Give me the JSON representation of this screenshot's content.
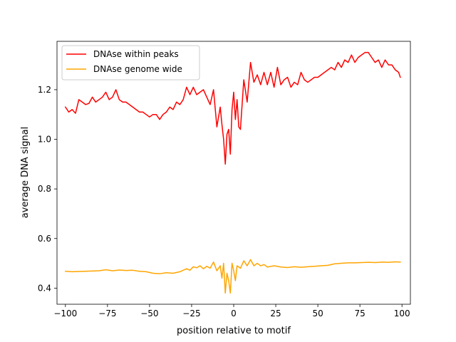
{
  "chart_data": {
    "type": "line",
    "xlabel": "position relative to motif",
    "ylabel": "average DNA signal",
    "xlim": [
      -105,
      105
    ],
    "ylim": [
      0.335,
      1.395
    ],
    "xticks": [
      -100,
      -75,
      -50,
      -25,
      0,
      25,
      50,
      75,
      100
    ],
    "xtick_labels": [
      "−100",
      "−75",
      "−50",
      "−25",
      "0",
      "25",
      "50",
      "75",
      "100"
    ],
    "yticks": [
      0.4,
      0.6,
      0.8,
      1.0,
      1.2
    ],
    "ytick_labels": [
      "0.4",
      "0.6",
      "0.8",
      "1.0",
      "1.2"
    ],
    "grid": false,
    "legend_position": "upper left",
    "series": [
      {
        "name": "DNAse within peaks",
        "color": "#ff0000",
        "x": [
          -100,
          -98,
          -96,
          -94,
          -92,
          -90,
          -88,
          -86,
          -84,
          -82,
          -80,
          -78,
          -76,
          -74,
          -72,
          -70,
          -68,
          -66,
          -64,
          -62,
          -60,
          -58,
          -56,
          -54,
          -52,
          -50,
          -48,
          -46,
          -44,
          -42,
          -40,
          -38,
          -36,
          -34,
          -32,
          -30,
          -28,
          -26,
          -24,
          -22,
          -20,
          -18,
          -16,
          -14,
          -12,
          -10,
          -8,
          -7,
          -6,
          -5,
          -4,
          -3,
          -2,
          -1,
          0,
          1,
          2,
          3,
          4,
          6,
          8,
          10,
          12,
          14,
          16,
          18,
          20,
          22,
          24,
          26,
          28,
          30,
          32,
          34,
          36,
          38,
          40,
          42,
          44,
          46,
          48,
          50,
          52,
          54,
          56,
          58,
          60,
          62,
          64,
          66,
          68,
          70,
          72,
          74,
          76,
          78,
          80,
          82,
          84,
          86,
          88,
          90,
          92,
          94,
          96,
          98,
          99
        ],
        "y": [
          1.13,
          1.11,
          1.12,
          1.105,
          1.16,
          1.15,
          1.14,
          1.145,
          1.17,
          1.15,
          1.16,
          1.17,
          1.19,
          1.16,
          1.17,
          1.2,
          1.16,
          1.15,
          1.15,
          1.14,
          1.13,
          1.12,
          1.11,
          1.11,
          1.1,
          1.09,
          1.1,
          1.1,
          1.08,
          1.1,
          1.11,
          1.13,
          1.12,
          1.15,
          1.14,
          1.16,
          1.21,
          1.18,
          1.21,
          1.18,
          1.19,
          1.2,
          1.17,
          1.14,
          1.2,
          1.05,
          1.13,
          1.06,
          1.0,
          0.9,
          1.02,
          1.04,
          0.94,
          1.12,
          1.19,
          1.08,
          1.16,
          1.05,
          1.04,
          1.24,
          1.15,
          1.31,
          1.23,
          1.26,
          1.22,
          1.27,
          1.22,
          1.27,
          1.21,
          1.29,
          1.22,
          1.24,
          1.25,
          1.21,
          1.23,
          1.22,
          1.27,
          1.24,
          1.23,
          1.24,
          1.25,
          1.25,
          1.26,
          1.27,
          1.28,
          1.29,
          1.28,
          1.31,
          1.29,
          1.32,
          1.31,
          1.34,
          1.31,
          1.33,
          1.34,
          1.35,
          1.35,
          1.33,
          1.31,
          1.32,
          1.29,
          1.32,
          1.3,
          1.3,
          1.28,
          1.27,
          1.25
        ]
      },
      {
        "name": "DNAse genome wide",
        "color": "#ffa500",
        "x": [
          -100,
          -96,
          -92,
          -88,
          -84,
          -80,
          -76,
          -72,
          -68,
          -64,
          -60,
          -56,
          -52,
          -48,
          -44,
          -40,
          -36,
          -32,
          -28,
          -26,
          -24,
          -22,
          -20,
          -18,
          -16,
          -14,
          -12,
          -10,
          -8,
          -7,
          -6,
          -5,
          -4,
          -3,
          -2,
          -1,
          0,
          1,
          2,
          4,
          6,
          8,
          10,
          12,
          14,
          16,
          18,
          20,
          24,
          28,
          32,
          36,
          40,
          44,
          48,
          52,
          56,
          60,
          64,
          68,
          72,
          76,
          80,
          84,
          88,
          92,
          96,
          99
        ],
        "y": [
          0.468,
          0.466,
          0.467,
          0.468,
          0.469,
          0.47,
          0.474,
          0.47,
          0.473,
          0.471,
          0.472,
          0.468,
          0.466,
          0.46,
          0.458,
          0.462,
          0.46,
          0.466,
          0.478,
          0.472,
          0.486,
          0.482,
          0.49,
          0.478,
          0.488,
          0.48,
          0.505,
          0.47,
          0.49,
          0.44,
          0.5,
          0.38,
          0.46,
          0.43,
          0.38,
          0.5,
          0.47,
          0.43,
          0.49,
          0.48,
          0.51,
          0.49,
          0.515,
          0.49,
          0.5,
          0.49,
          0.495,
          0.485,
          0.49,
          0.485,
          0.483,
          0.486,
          0.484,
          0.486,
          0.488,
          0.49,
          0.492,
          0.498,
          0.5,
          0.502,
          0.502,
          0.503,
          0.504,
          0.503,
          0.505,
          0.504,
          0.506,
          0.505
        ]
      }
    ]
  }
}
